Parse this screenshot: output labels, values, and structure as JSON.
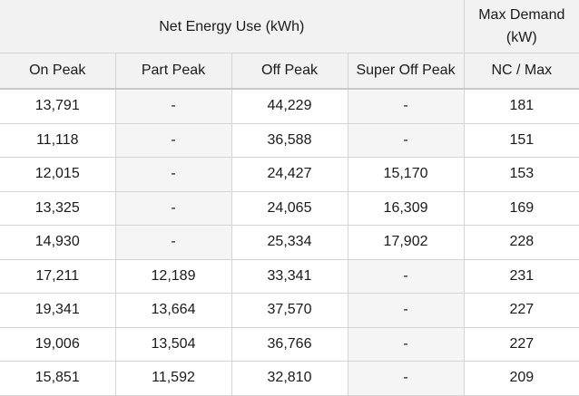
{
  "header": {
    "group_energy": "Net Energy Use (kWh)",
    "group_demand_title": "Max Demand",
    "group_demand_unit": "(kW)",
    "columns": [
      "On Peak",
      "Part Peak",
      "Off Peak",
      "Super Off Peak",
      "NC / Max"
    ]
  },
  "empty_marker": "-",
  "rows": [
    [
      "13,791",
      "-",
      "44,229",
      "-",
      "181"
    ],
    [
      "11,118",
      "-",
      "36,588",
      "-",
      "151"
    ],
    [
      "12,015",
      "-",
      "24,427",
      "15,170",
      "153"
    ],
    [
      "13,325",
      "-",
      "24,065",
      "16,309",
      "169"
    ],
    [
      "14,930",
      "-",
      "25,334",
      "17,902",
      "228"
    ],
    [
      "17,211",
      "12,189",
      "33,341",
      "-",
      "231"
    ],
    [
      "19,341",
      "13,664",
      "37,570",
      "-",
      "227"
    ],
    [
      "19,006",
      "13,504",
      "36,766",
      "-",
      "227"
    ],
    [
      "15,851",
      "11,592",
      "32,810",
      "-",
      "209"
    ]
  ],
  "colors": {
    "header_background": "#f2f2f2",
    "empty_cell_background": "#f5f5f5",
    "border": "#d4d4d4"
  }
}
